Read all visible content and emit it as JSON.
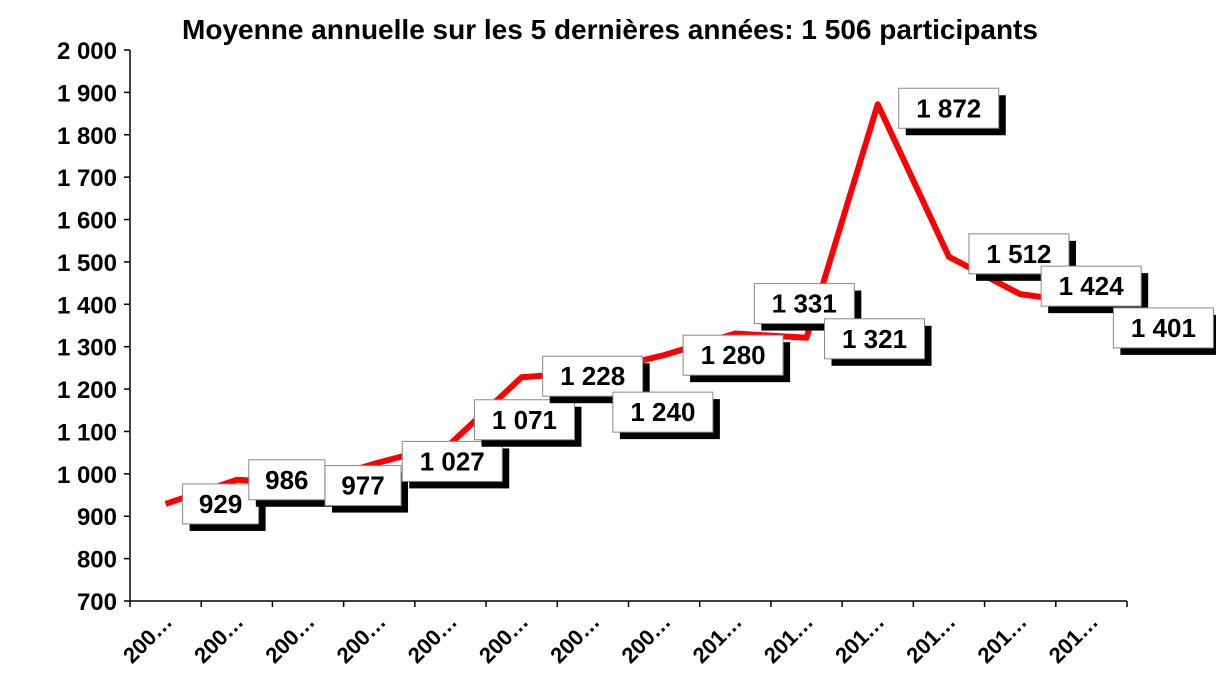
{
  "chart_data": {
    "type": "line",
    "title": "Moyenne annuelle sur les 5 dernières années: 1 506 participants",
    "categories": [
      "200…",
      "200…",
      "200…",
      "200…",
      "200…",
      "200…",
      "200…",
      "200…",
      "201…",
      "201…",
      "201…",
      "201…",
      "201…",
      "201…"
    ],
    "series": [
      {
        "name": "participants",
        "color": "#ff0000",
        "values": [
          929,
          986,
          977,
          1027,
          1071,
          1228,
          1240,
          1280,
          1331,
          1321,
          1872,
          1512,
          1424,
          1401
        ],
        "value_labels": [
          "929",
          "986",
          "977",
          "1 027",
          "1 071",
          "1 228",
          "1 240",
          "1 280",
          "1 331",
          "1 321",
          "1 872",
          "1 512",
          "1 424",
          "1 401"
        ]
      }
    ],
    "ylim": [
      700,
      2000
    ],
    "yticks": [
      700,
      800,
      900,
      {
        "value": 1000,
        "label": "1 000"
      },
      {
        "value": 1100,
        "label": "1 100"
      },
      {
        "value": 1200,
        "label": "1 200"
      },
      {
        "value": 1300,
        "label": "1 300"
      },
      {
        "value": 1400,
        "label": "1 400"
      },
      {
        "value": 1500,
        "label": "1 500"
      },
      {
        "value": 1600,
        "label": "1 600"
      },
      {
        "value": 1700,
        "label": "1 700"
      },
      {
        "value": 1800,
        "label": "1 800"
      },
      {
        "value": 1900,
        "label": "1 900"
      },
      {
        "value": 2000,
        "label": "2 000"
      }
    ],
    "grid": false
  }
}
